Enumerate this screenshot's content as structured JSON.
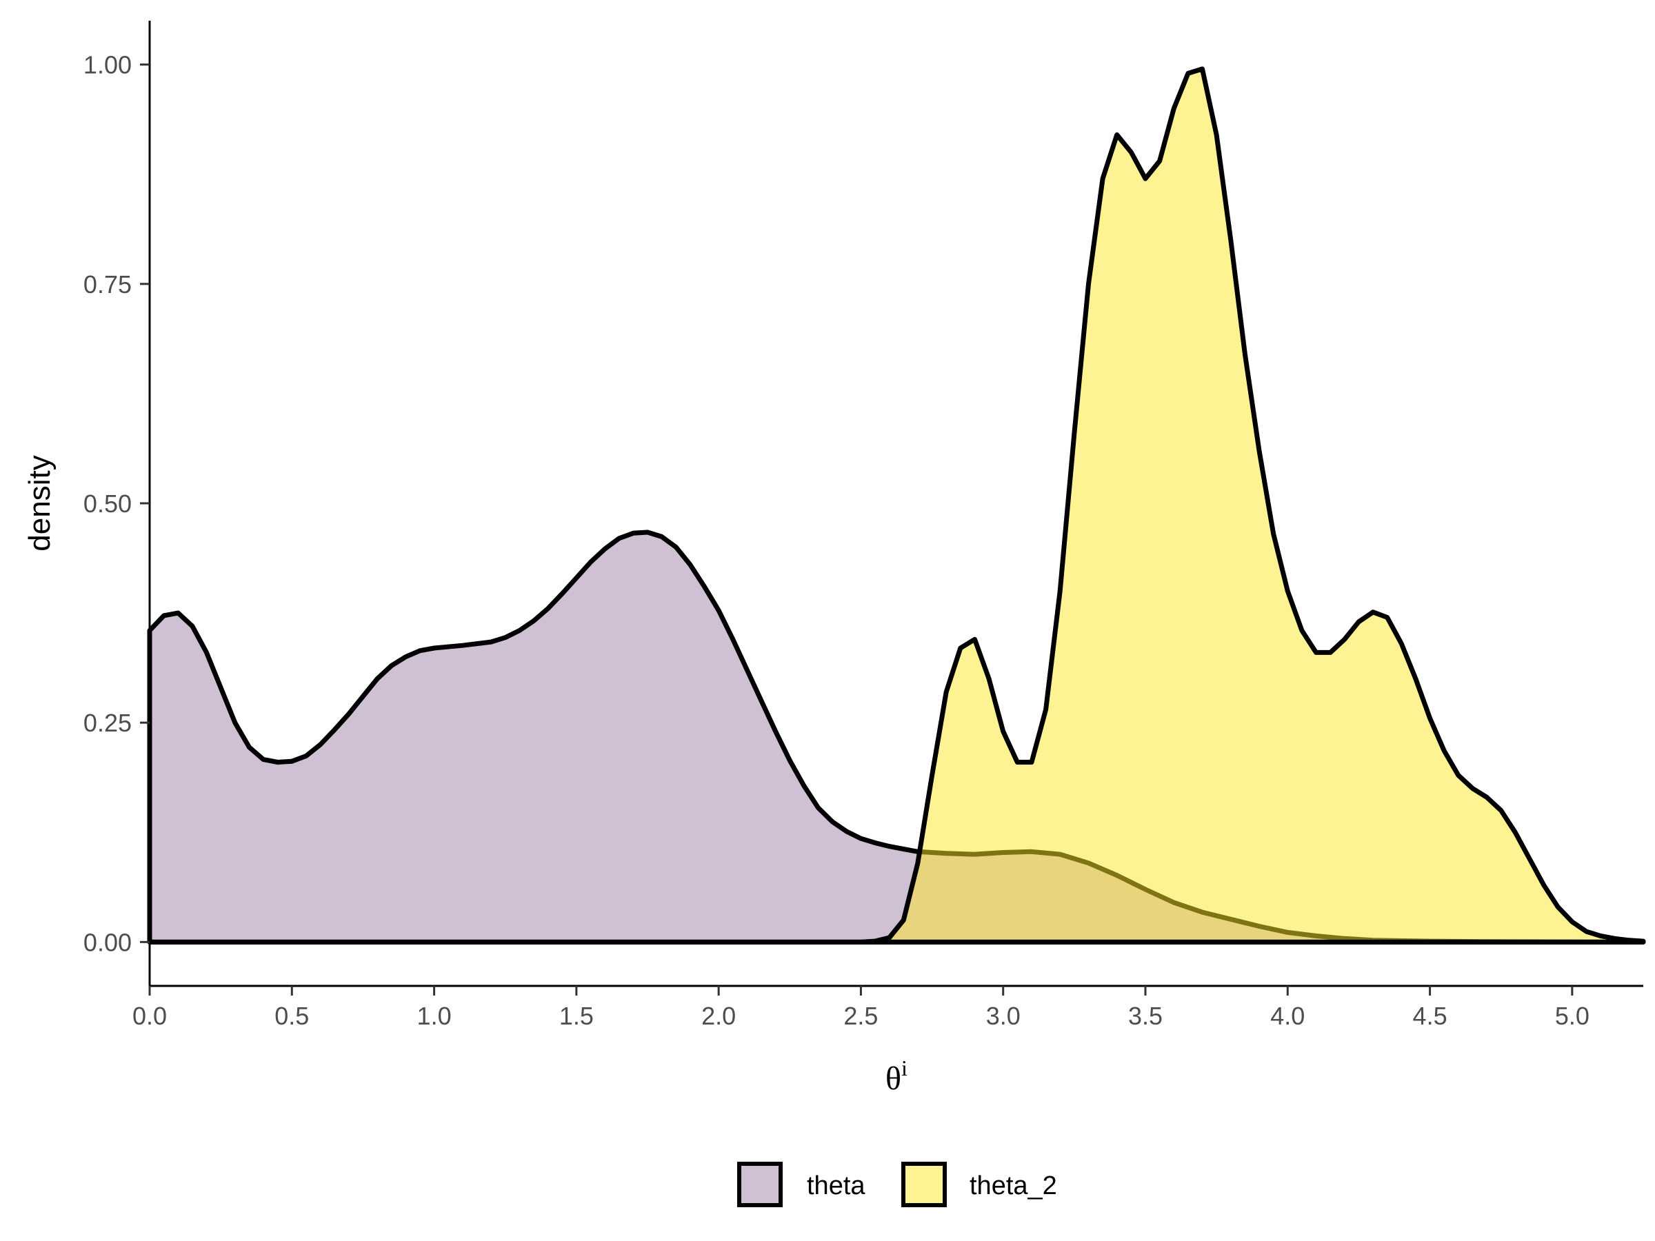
{
  "chart_data": {
    "type": "area",
    "xlabel_base": "θ",
    "xlabel_sup": "i",
    "ylabel": "density",
    "xlim": [
      0,
      5.25
    ],
    "ylim": [
      -0.05,
      1.05
    ],
    "x_ticks": [
      0,
      0.5,
      1,
      1.5,
      2,
      2.5,
      3,
      3.5,
      4,
      4.5,
      5
    ],
    "x_tick_labels": [
      "0.0",
      "0.5",
      "1.0",
      "1.5",
      "2.0",
      "2.5",
      "3.0",
      "3.5",
      "4.0",
      "4.5",
      "5.0"
    ],
    "y_ticks": [
      0,
      0.25,
      0.5,
      0.75,
      1
    ],
    "y_tick_labels": [
      "0.00",
      "0.25",
      "0.50",
      "0.75",
      "1.00"
    ],
    "grid": false,
    "legend_position": "bottom",
    "series": [
      {
        "name": "theta",
        "fill": "#a282a9",
        "stroke": "#000000",
        "x": [
          0,
          0.05,
          0.1,
          0.15,
          0.2,
          0.25,
          0.3,
          0.35,
          0.4,
          0.45,
          0.5,
          0.55,
          0.6,
          0.65,
          0.7,
          0.75,
          0.8,
          0.85,
          0.9,
          0.95,
          1.0,
          1.1,
          1.2,
          1.25,
          1.3,
          1.35,
          1.4,
          1.45,
          1.5,
          1.55,
          1.6,
          1.65,
          1.7,
          1.75,
          1.8,
          1.85,
          1.9,
          1.95,
          2.0,
          2.05,
          2.1,
          2.15,
          2.2,
          2.25,
          2.3,
          2.35,
          2.4,
          2.45,
          2.5,
          2.55,
          2.6,
          2.65,
          2.7,
          2.8,
          2.9,
          3.0,
          3.1,
          3.2,
          3.3,
          3.4,
          3.5,
          3.6,
          3.7,
          3.8,
          3.9,
          4.0,
          4.1,
          4.2,
          4.3,
          4.5,
          4.7,
          5.0,
          5.25
        ],
        "y": [
          0.355,
          0.372,
          0.375,
          0.36,
          0.33,
          0.29,
          0.25,
          0.222,
          0.208,
          0.205,
          0.206,
          0.212,
          0.225,
          0.242,
          0.26,
          0.28,
          0.3,
          0.315,
          0.325,
          0.332,
          0.335,
          0.338,
          0.342,
          0.347,
          0.355,
          0.366,
          0.38,
          0.397,
          0.415,
          0.433,
          0.448,
          0.46,
          0.466,
          0.467,
          0.462,
          0.45,
          0.43,
          0.405,
          0.378,
          0.345,
          0.31,
          0.275,
          0.24,
          0.207,
          0.178,
          0.153,
          0.137,
          0.126,
          0.118,
          0.113,
          0.109,
          0.106,
          0.103,
          0.101,
          0.1,
          0.102,
          0.103,
          0.1,
          0.09,
          0.076,
          0.06,
          0.045,
          0.034,
          0.026,
          0.018,
          0.011,
          0.007,
          0.004,
          0.002,
          0.001,
          0.0005,
          0.0002,
          0
        ]
      },
      {
        "name": "theta_2",
        "fill": "#fde725",
        "stroke": "#000000",
        "x": [
          0,
          2.5,
          2.55,
          2.6,
          2.65,
          2.7,
          2.75,
          2.8,
          2.85,
          2.9,
          2.95,
          3.0,
          3.05,
          3.1,
          3.15,
          3.2,
          3.25,
          3.3,
          3.35,
          3.4,
          3.45,
          3.5,
          3.55,
          3.6,
          3.65,
          3.7,
          3.75,
          3.8,
          3.85,
          3.9,
          3.95,
          4.0,
          4.05,
          4.1,
          4.15,
          4.2,
          4.25,
          4.3,
          4.35,
          4.4,
          4.45,
          4.5,
          4.55,
          4.6,
          4.65,
          4.7,
          4.75,
          4.8,
          4.85,
          4.9,
          4.95,
          5.0,
          5.05,
          5.1,
          5.15,
          5.2,
          5.25
        ],
        "y": [
          0,
          0,
          0.001,
          0.005,
          0.025,
          0.09,
          0.19,
          0.285,
          0.335,
          0.345,
          0.3,
          0.24,
          0.205,
          0.205,
          0.265,
          0.4,
          0.58,
          0.75,
          0.87,
          0.92,
          0.9,
          0.87,
          0.89,
          0.95,
          0.99,
          0.995,
          0.92,
          0.8,
          0.67,
          0.56,
          0.465,
          0.4,
          0.355,
          0.33,
          0.33,
          0.345,
          0.365,
          0.376,
          0.37,
          0.34,
          0.3,
          0.255,
          0.218,
          0.19,
          0.175,
          0.165,
          0.15,
          0.125,
          0.095,
          0.065,
          0.04,
          0.023,
          0.012,
          0.007,
          0.004,
          0.002,
          0.001
        ]
      }
    ]
  }
}
